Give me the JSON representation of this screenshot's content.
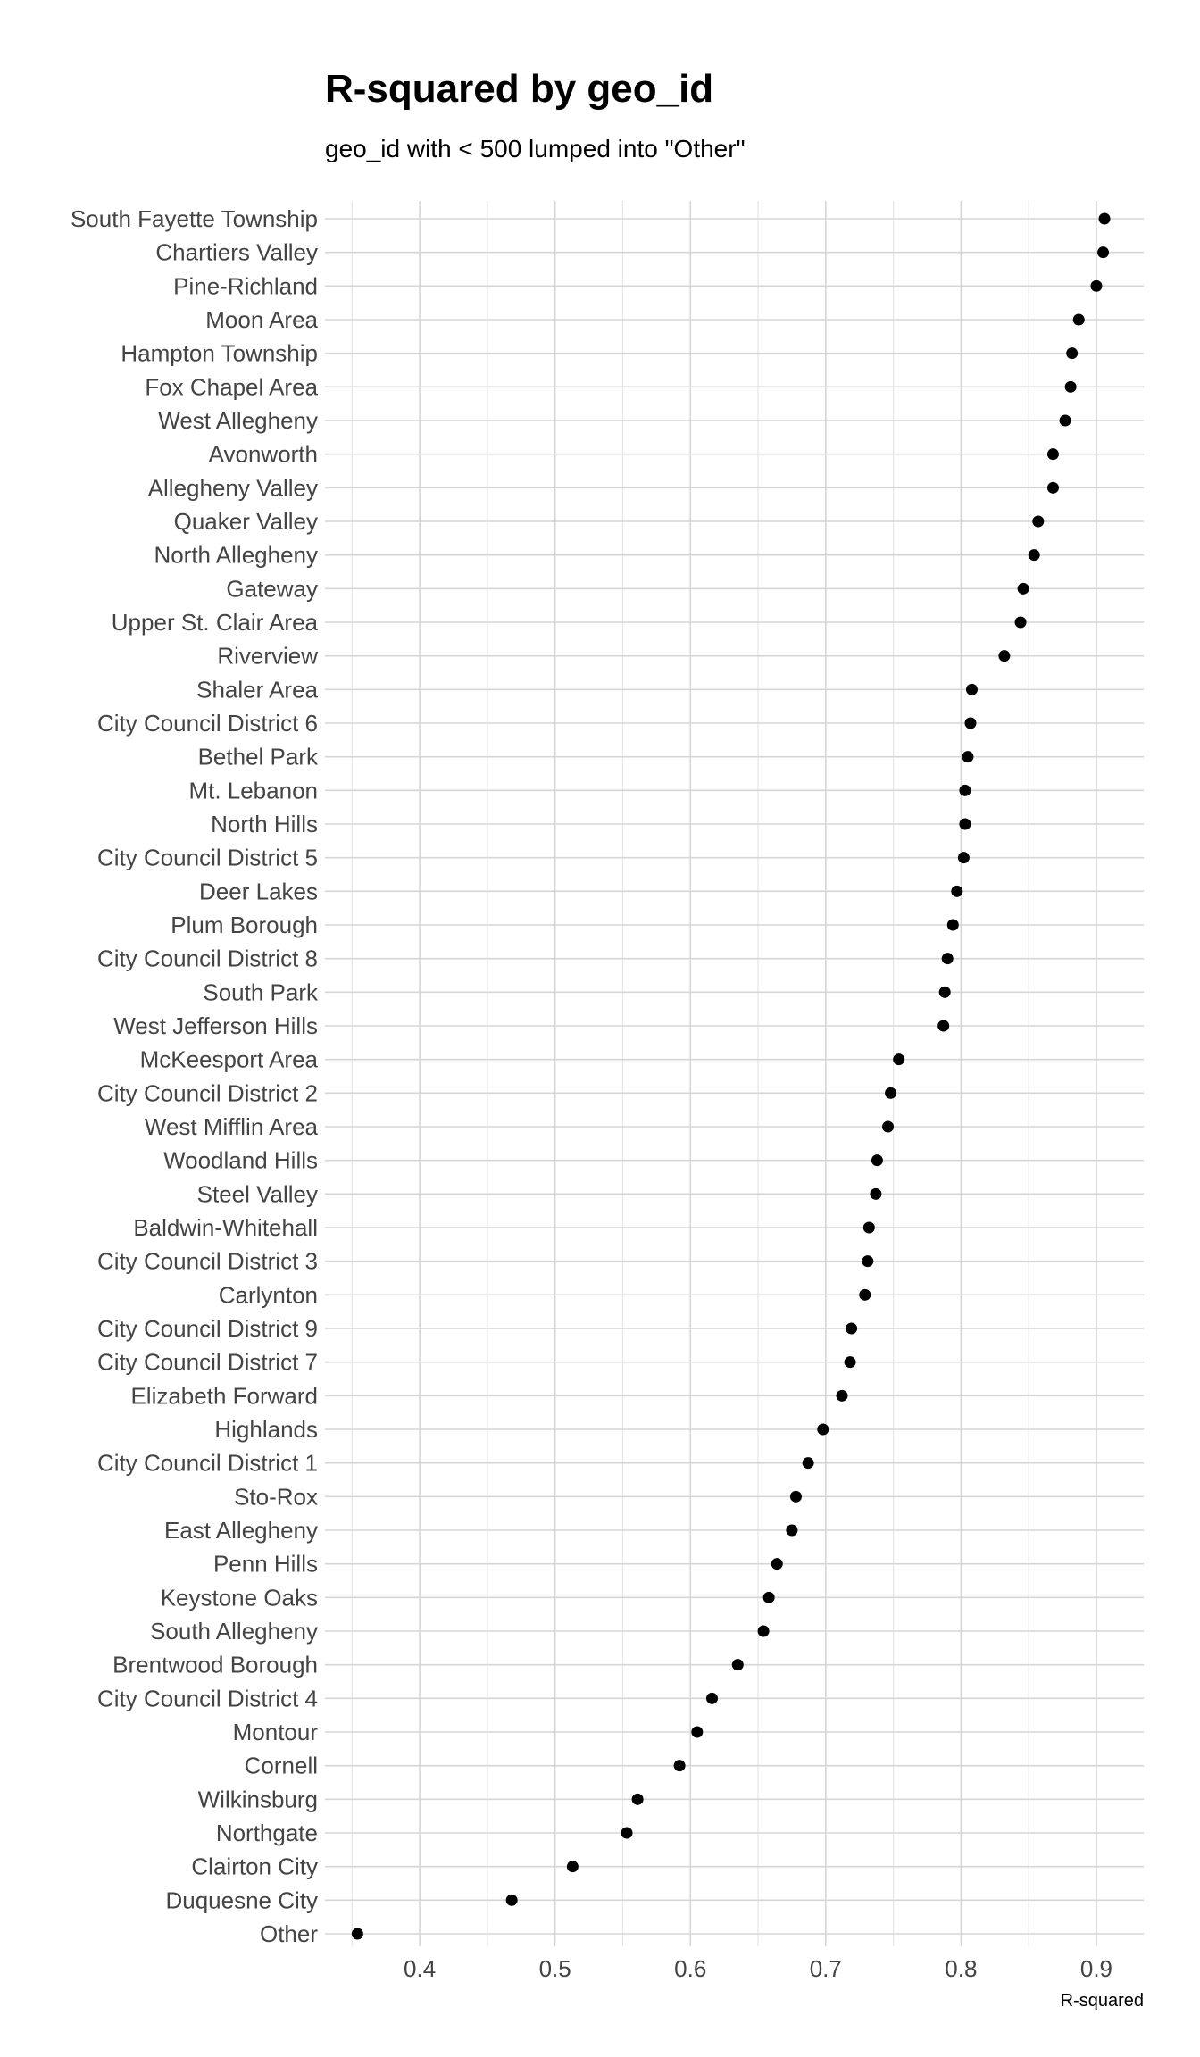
{
  "chart_data": {
    "type": "scatter",
    "title": "R-squared by geo_id",
    "subtitle": "geo_id with < 500 lumped into \"Other\"",
    "xlabel": "R-squared",
    "ylabel": "",
    "xlim": [
      0.33,
      0.935
    ],
    "x_ticks": [
      0.4,
      0.5,
      0.6,
      0.7,
      0.8,
      0.9
    ],
    "x_tick_labels": [
      "0.4",
      "0.5",
      "0.6",
      "0.7",
      "0.8",
      "0.9"
    ],
    "x_minor_ticks": [
      0.35,
      0.45,
      0.55,
      0.65,
      0.75,
      0.85
    ],
    "grid": true,
    "point_color": "#000000",
    "categories": [
      "South Fayette Township",
      "Chartiers Valley",
      "Pine-Richland",
      "Moon Area",
      "Hampton Township",
      "Fox Chapel Area",
      "West Allegheny",
      "Avonworth",
      "Allegheny Valley",
      "Quaker Valley",
      "North Allegheny",
      "Gateway",
      "Upper St. Clair Area",
      "Riverview",
      "Shaler Area",
      "City Council District 6",
      "Bethel Park",
      "Mt. Lebanon",
      "North Hills",
      "City Council District 5",
      "Deer Lakes",
      "Plum Borough",
      "City Council District 8",
      "South Park",
      "West Jefferson Hills",
      "McKeesport Area",
      "City Council District 2",
      "West Mifflin Area",
      "Woodland Hills",
      "Steel Valley",
      "Baldwin-Whitehall",
      "City Council District 3",
      "Carlynton",
      "City Council District 9",
      "City Council District 7",
      "Elizabeth Forward",
      "Highlands",
      "City Council District 1",
      "Sto-Rox",
      "East Allegheny",
      "Penn Hills",
      "Keystone Oaks",
      "South Allegheny",
      "Brentwood Borough",
      "City Council District 4",
      "Montour",
      "Cornell",
      "Wilkinsburg",
      "Northgate",
      "Clairton City",
      "Duquesne City",
      "Other"
    ],
    "values": [
      0.906,
      0.905,
      0.9,
      0.887,
      0.882,
      0.881,
      0.877,
      0.868,
      0.868,
      0.857,
      0.854,
      0.846,
      0.844,
      0.832,
      0.808,
      0.807,
      0.805,
      0.803,
      0.803,
      0.802,
      0.797,
      0.794,
      0.79,
      0.788,
      0.787,
      0.754,
      0.748,
      0.746,
      0.738,
      0.737,
      0.732,
      0.731,
      0.729,
      0.719,
      0.718,
      0.712,
      0.698,
      0.687,
      0.678,
      0.675,
      0.664,
      0.658,
      0.654,
      0.635,
      0.616,
      0.605,
      0.592,
      0.561,
      0.553,
      0.513,
      0.468,
      0.354
    ]
  }
}
